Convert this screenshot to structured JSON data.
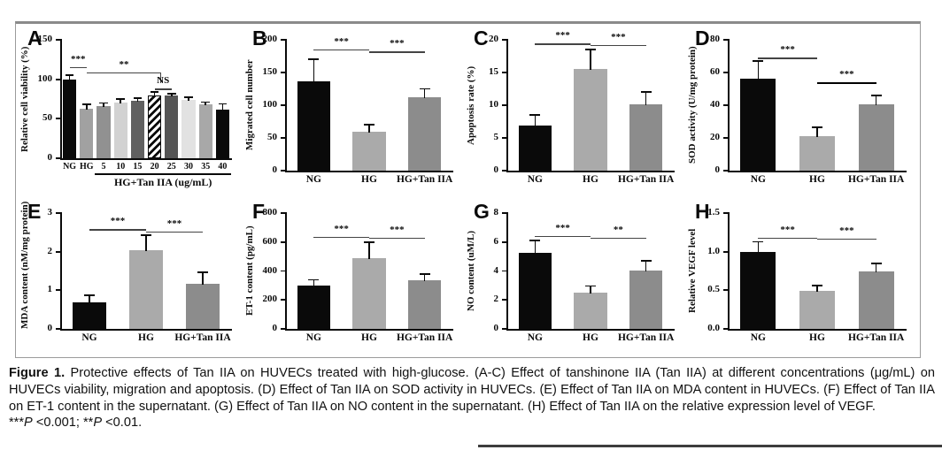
{
  "colors": {
    "ng_bar": "#0a0a0a",
    "hg_bar": "#aaaaaa",
    "tan_bar": "#8c8c8c",
    "axis": "#0a0a0a",
    "sig_line": "#444444",
    "box_border": "#9b9b9b",
    "rule": "#3d3d3d"
  },
  "caption": {
    "label": "Figure 1.",
    "body": "Protective effects of Tan IIA on HUVECs treated with high-glucose. (A-C) Effect of tanshinone IIA (Tan IIA) at different concentrations (μg/mL) on HUVECs viability, migration and apoptosis. (D) Effect of Tan IIA on SOD activity in HUVECs. (E) Effect of Tan IIA on MDA content in HUVECs. (F) Effect of Tan IIA on ET-1 content in the supernatant. (G) Effect of Tan IIA on NO content in the supernatant. (H) Effect of Tan IIA on the relative expression level of VEGF.",
    "stats": {
      "sig3": "***",
      "p1": "P",
      "t1": " <0.001; ",
      "sig2": "**",
      "p2": "P",
      "t2": " <0.01."
    }
  },
  "chart_data": [
    {
      "type": "bar",
      "label": "A",
      "ylabel": "Relative cell viability (%)",
      "ymax": 150,
      "yticks": [
        "0",
        "50",
        "100",
        "150"
      ],
      "categories": [
        "NG",
        "HG",
        "5",
        "10",
        "15",
        "20",
        "25",
        "30",
        "35",
        "40"
      ],
      "values": [
        100,
        63,
        66,
        71,
        73,
        80,
        79,
        74,
        68,
        62
      ],
      "errors": [
        5,
        5,
        4,
        4,
        3,
        4,
        3,
        3,
        3,
        7
      ],
      "bar_colors": [
        "#0a0a0a",
        "#a1a1a1",
        "#919191",
        "#d2d2d2",
        "#606060",
        "hatch",
        "#555555",
        "#e2e2e2",
        "#a8a8a8",
        "#0a0a0a"
      ],
      "xlabel": "HG+Tan IIA (ug/mL)",
      "xlabel_span": [
        2,
        9
      ],
      "sig": [
        {
          "from": 0,
          "to": 1,
          "label": "***",
          "y": 115
        },
        {
          "from": 1,
          "to": 5.4,
          "label": "**",
          "y": 109,
          "drop_right": 12
        },
        {
          "from": 5,
          "to": 6,
          "label": "NS",
          "y": 88
        }
      ]
    },
    {
      "type": "bar",
      "label": "B",
      "ylabel": "Migrated cell number",
      "ymax": 200,
      "yticks": [
        "0",
        "50",
        "100",
        "150",
        "200"
      ],
      "categories": [
        "NG",
        "HG",
        "HG+Tan IIA"
      ],
      "values": [
        137,
        59,
        112
      ],
      "errors": [
        33,
        11,
        13
      ],
      "bar_colors": [
        "#0a0a0a",
        "#aaaaaa",
        "#8c8c8c"
      ],
      "sig": [
        {
          "from": 0,
          "to": 1,
          "label": "***",
          "y": 185
        },
        {
          "from": 1,
          "to": 2,
          "label": "***",
          "y": 182
        }
      ]
    },
    {
      "type": "bar",
      "label": "C",
      "ylabel": "Apoptosis rate (%)",
      "ymax": 20,
      "yticks": [
        "0",
        "5",
        "10",
        "15",
        "20"
      ],
      "categories": [
        "NG",
        "HG",
        "HG+Tan IIA"
      ],
      "values": [
        6.9,
        15.6,
        10.1
      ],
      "errors": [
        1.6,
        2.9,
        1.9
      ],
      "bar_colors": [
        "#0a0a0a",
        "#aaaaaa",
        "#8c8c8c"
      ],
      "sig": [
        {
          "from": 0,
          "to": 1,
          "label": "***",
          "y": 19.4
        },
        {
          "from": 1,
          "to": 2,
          "label": "***",
          "y": 19.2
        }
      ]
    },
    {
      "type": "bar",
      "label": "D",
      "ylabel": "SOD activity (U/mg protein)",
      "ymax": 80,
      "yticks": [
        "0",
        "20",
        "40",
        "60",
        "80"
      ],
      "categories": [
        "NG",
        "HG",
        "HG+Tan IIA"
      ],
      "values": [
        56,
        21,
        40.5
      ],
      "errors": [
        11,
        5.5,
        5.5
      ],
      "bar_colors": [
        "#0a0a0a",
        "#aaaaaa",
        "#8c8c8c"
      ],
      "sig": [
        {
          "from": 0,
          "to": 1,
          "label": "***",
          "y": 69
        },
        {
          "from": 1,
          "to": 2,
          "label": "***",
          "y": 54,
          "thick": true
        }
      ]
    },
    {
      "type": "bar",
      "label": "E",
      "ylabel": "MDA content (nM/mg protein)",
      "ymax": 3,
      "yticks": [
        "0",
        "1",
        "2",
        "3"
      ],
      "categories": [
        "NG",
        "HG",
        "HG+Tan IIA"
      ],
      "values": [
        0.69,
        2.03,
        1.17
      ],
      "errors": [
        0.18,
        0.4,
        0.3
      ],
      "bar_colors": [
        "#0a0a0a",
        "#aaaaaa",
        "#8c8c8c"
      ],
      "sig": [
        {
          "from": 0,
          "to": 1,
          "label": "***",
          "y": 2.58
        },
        {
          "from": 1,
          "to": 2,
          "label": "***",
          "y": 2.52
        }
      ]
    },
    {
      "type": "bar",
      "label": "F",
      "ylabel": "ET-1 content (pg/mL)",
      "ymax": 800,
      "yticks": [
        "0",
        "200",
        "400",
        "600",
        "800"
      ],
      "categories": [
        "NG",
        "HG",
        "HG+Tan IIA"
      ],
      "values": [
        300,
        490,
        337
      ],
      "errors": [
        38,
        110,
        40
      ],
      "bar_colors": [
        "#0a0a0a",
        "#aaaaaa",
        "#8c8c8c"
      ],
      "sig": [
        {
          "from": 0,
          "to": 1,
          "label": "***",
          "y": 635
        },
        {
          "from": 1,
          "to": 2,
          "label": "***",
          "y": 628
        }
      ]
    },
    {
      "type": "bar",
      "label": "G",
      "ylabel": "NO content (uM/L)",
      "ymax": 8,
      "yticks": [
        "0",
        "2",
        "4",
        "6",
        "8"
      ],
      "categories": [
        "NG",
        "HG",
        "HG+Tan IIA"
      ],
      "values": [
        5.25,
        2.5,
        4.05
      ],
      "errors": [
        0.85,
        0.45,
        0.65
      ],
      "bar_colors": [
        "#0a0a0a",
        "#aaaaaa",
        "#8c8c8c"
      ],
      "sig": [
        {
          "from": 0,
          "to": 1,
          "label": "***",
          "y": 6.4
        },
        {
          "from": 1,
          "to": 2,
          "label": "**",
          "y": 6.3
        }
      ]
    },
    {
      "type": "bar",
      "label": "H",
      "ylabel": "Relative VEGF level",
      "ymax": 1.5,
      "yticks": [
        "0.0",
        "0.5",
        "1.0",
        "1.5"
      ],
      "categories": [
        "NG",
        "HG",
        "HG+Tan IIA"
      ],
      "values": [
        1.0,
        0.49,
        0.74
      ],
      "errors": [
        0.13,
        0.07,
        0.11
      ],
      "bar_colors": [
        "#0a0a0a",
        "#aaaaaa",
        "#8c8c8c"
      ],
      "sig": [
        {
          "from": 0,
          "to": 1,
          "label": "***",
          "y": 1.18
        },
        {
          "from": 1,
          "to": 2,
          "label": "***",
          "y": 1.17
        }
      ]
    }
  ]
}
